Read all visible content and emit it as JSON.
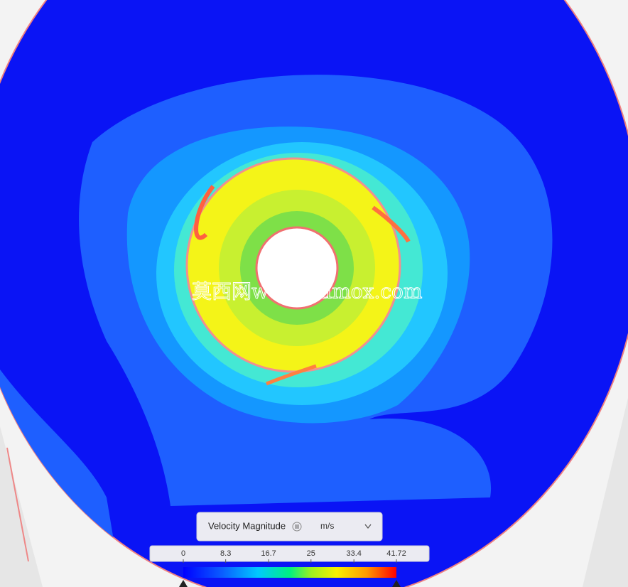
{
  "legend": {
    "field": "Velocity Magnitude",
    "unit": "m/s",
    "ticks": [
      0,
      8.3,
      16.7,
      25,
      33.4,
      41.72
    ]
  },
  "watermark": "莫西网www.3dmox.com"
}
